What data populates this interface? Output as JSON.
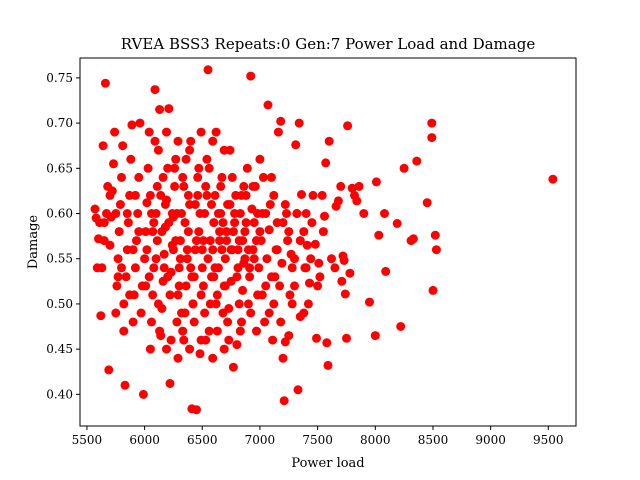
{
  "chart_data": {
    "type": "scatter",
    "title": "RVEA BSS3 Repeats:0 Gen:7 Power Load and Damage",
    "xlabel": "Power load",
    "ylabel": "Damage",
    "xlim": [
      5440,
      9740
    ],
    "ylim": [
      0.365,
      0.772
    ],
    "xticks": [
      "5500",
      "6000",
      "6500",
      "7000",
      "7500",
      "8000",
      "8500",
      "9000",
      "9500"
    ],
    "yticks": [
      "0.40",
      "0.45",
      "0.50",
      "0.55",
      "0.60",
      "0.65",
      "0.70",
      "0.75"
    ],
    "grid": false,
    "legend": "none",
    "marker_color": "#ff0000",
    "points": [
      [
        9540,
        0.638
      ],
      [
        8530,
        0.56
      ],
      [
        8520,
        0.576
      ],
      [
        8500,
        0.515
      ],
      [
        8490,
        0.7
      ],
      [
        8490,
        0.684
      ],
      [
        8450,
        0.612
      ],
      [
        8360,
        0.658
      ],
      [
        8330,
        0.572
      ],
      [
        8310,
        0.57
      ],
      [
        8250,
        0.65
      ],
      [
        8220,
        0.475
      ],
      [
        8190,
        0.589
      ],
      [
        8090,
        0.536
      ],
      [
        8080,
        0.6
      ],
      [
        8030,
        0.576
      ],
      [
        8010,
        0.635
      ],
      [
        8000,
        0.465
      ],
      [
        7950,
        0.502
      ],
      [
        7900,
        0.6
      ],
      [
        7860,
        0.63
      ],
      [
        7840,
        0.614
      ],
      [
        7820,
        0.62
      ],
      [
        7800,
        0.628
      ],
      [
        7780,
        0.534
      ],
      [
        7760,
        0.697
      ],
      [
        7750,
        0.462
      ],
      [
        7740,
        0.511
      ],
      [
        7730,
        0.548
      ],
      [
        7720,
        0.553
      ],
      [
        7710,
        0.525
      ],
      [
        7700,
        0.63
      ],
      [
        7680,
        0.614
      ],
      [
        7660,
        0.608
      ],
      [
        7650,
        0.54
      ],
      [
        7620,
        0.55
      ],
      [
        7600,
        0.68
      ],
      [
        7590,
        0.432
      ],
      [
        7580,
        0.457
      ],
      [
        7570,
        0.656
      ],
      [
        7560,
        0.597
      ],
      [
        7550,
        0.58
      ],
      [
        7540,
        0.62
      ],
      [
        7520,
        0.53
      ],
      [
        7510,
        0.545
      ],
      [
        7500,
        0.52
      ],
      [
        7490,
        0.462
      ],
      [
        7480,
        0.566
      ],
      [
        7460,
        0.62
      ],
      [
        7450,
        0.59
      ],
      [
        7440,
        0.55
      ],
      [
        7430,
        0.523
      ],
      [
        7420,
        0.5
      ],
      [
        7410,
        0.565
      ],
      [
        7400,
        0.6
      ],
      [
        7390,
        0.54
      ],
      [
        7380,
        0.58
      ],
      [
        7360,
        0.621
      ],
      [
        7350,
        0.486
      ],
      [
        7340,
        0.7
      ],
      [
        7330,
        0.405
      ],
      [
        7320,
        0.6
      ],
      [
        7310,
        0.676
      ],
      [
        7300,
        0.52
      ],
      [
        7280,
        0.54
      ],
      [
        7270,
        0.555
      ],
      [
        7260,
        0.51
      ],
      [
        7250,
        0.465
      ],
      [
        7240,
        0.57
      ],
      [
        7230,
        0.6
      ],
      [
        7220,
        0.458
      ],
      [
        7210,
        0.393
      ],
      [
        7200,
        0.44
      ],
      [
        7190,
        0.545
      ],
      [
        7180,
        0.702
      ],
      [
        7170,
        0.52
      ],
      [
        7160,
        0.69
      ],
      [
        7150,
        0.59
      ],
      [
        7140,
        0.56
      ],
      [
        7130,
        0.53
      ],
      [
        7120,
        0.5
      ],
      [
        7110,
        0.46
      ],
      [
        7100,
        0.64
      ],
      [
        7090,
        0.61
      ],
      [
        7080,
        0.582
      ],
      [
        7070,
        0.72
      ],
      [
        7060,
        0.55
      ],
      [
        7050,
        0.52
      ],
      [
        7040,
        0.48
      ],
      [
        7030,
        0.64
      ],
      [
        7020,
        0.6
      ],
      [
        7010,
        0.57
      ],
      [
        7000,
        0.66
      ],
      [
        6990,
        0.54
      ],
      [
        6980,
        0.51
      ],
      [
        6970,
        0.47
      ],
      [
        6960,
        0.63
      ],
      [
        6950,
        0.59
      ],
      [
        6940,
        0.56
      ],
      [
        6930,
        0.605
      ],
      [
        6920,
        0.752
      ],
      [
        6910,
        0.53
      ],
      [
        6900,
        0.5
      ],
      [
        6890,
        0.65
      ],
      [
        6880,
        0.62
      ],
      [
        6870,
        0.58
      ],
      [
        6860,
        0.545
      ],
      [
        6850,
        0.515
      ],
      [
        6840,
        0.48
      ],
      [
        6830,
        0.6
      ],
      [
        6820,
        0.57
      ],
      [
        6810,
        0.54
      ],
      [
        6800,
        0.455
      ],
      [
        6790,
        0.62
      ],
      [
        6780,
        0.59
      ],
      [
        6770,
        0.43
      ],
      [
        6760,
        0.56
      ],
      [
        6750,
        0.525
      ],
      [
        6740,
        0.67
      ],
      [
        6730,
        0.495
      ],
      [
        6720,
        0.61
      ],
      [
        6710,
        0.58
      ],
      [
        6700,
        0.55
      ],
      [
        6690,
        0.52
      ],
      [
        6680,
        0.49
      ],
      [
        6670,
        0.64
      ],
      [
        6660,
        0.6
      ],
      [
        6650,
        0.57
      ],
      [
        6640,
        0.54
      ],
      [
        6630,
        0.51
      ],
      [
        6620,
        0.69
      ],
      [
        6610,
        0.62
      ],
      [
        6600,
        0.59
      ],
      [
        6590,
        0.56
      ],
      [
        6580,
        0.53
      ],
      [
        6570,
        0.5
      ],
      [
        6560,
        0.47
      ],
      [
        6550,
        0.759
      ],
      [
        6540,
        0.66
      ],
      [
        6530,
        0.63
      ],
      [
        6520,
        0.6
      ],
      [
        6510,
        0.57
      ],
      [
        6500,
        0.54
      ],
      [
        6490,
        0.51
      ],
      [
        6480,
        0.445
      ],
      [
        6470,
        0.65
      ],
      [
        6460,
        0.62
      ],
      [
        6450,
        0.383
      ],
      [
        6440,
        0.56
      ],
      [
        6430,
        0.53
      ],
      [
        6420,
        0.5
      ],
      [
        6410,
        0.384
      ],
      [
        6400,
        0.68
      ],
      [
        6390,
        0.61
      ],
      [
        6380,
        0.58
      ],
      [
        6370,
        0.55
      ],
      [
        6360,
        0.52
      ],
      [
        6350,
        0.49
      ],
      [
        6340,
        0.46
      ],
      [
        6330,
        0.64
      ],
      [
        6320,
        0.6
      ],
      [
        6310,
        0.57
      ],
      [
        6300,
        0.54
      ],
      [
        6290,
        0.51
      ],
      [
        6280,
        0.48
      ],
      [
        6270,
        0.66
      ],
      [
        6260,
        0.63
      ],
      [
        6250,
        0.596
      ],
      [
        6240,
        0.565
      ],
      [
        6230,
        0.535
      ],
      [
        6220,
        0.412
      ],
      [
        6210,
        0.716
      ],
      [
        6200,
        0.65
      ],
      [
        6190,
        0.615
      ],
      [
        6180,
        0.585
      ],
      [
        6170,
        0.555
      ],
      [
        6160,
        0.525
      ],
      [
        6150,
        0.495
      ],
      [
        6140,
        0.465
      ],
      [
        6130,
        0.715
      ],
      [
        6120,
        0.67
      ],
      [
        6110,
        0.63
      ],
      [
        6100,
        0.6
      ],
      [
        6090,
        0.737
      ],
      [
        6080,
        0.54
      ],
      [
        6070,
        0.51
      ],
      [
        6060,
        0.48
      ],
      [
        6050,
        0.45
      ],
      [
        6040,
        0.69
      ],
      [
        6030,
        0.65
      ],
      [
        6020,
        0.612
      ],
      [
        6010,
        0.58
      ],
      [
        6000,
        0.55
      ],
      [
        5990,
        0.4
      ],
      [
        5980,
        0.52
      ],
      [
        5970,
        0.49
      ],
      [
        5960,
        0.7
      ],
      [
        5950,
        0.64
      ],
      [
        5940,
        0.6
      ],
      [
        5930,
        0.57
      ],
      [
        5920,
        0.54
      ],
      [
        5910,
        0.51
      ],
      [
        5900,
        0.48
      ],
      [
        5890,
        0.698
      ],
      [
        5880,
        0.66
      ],
      [
        5870,
        0.62
      ],
      [
        5860,
        0.59
      ],
      [
        5850,
        0.56
      ],
      [
        5840,
        0.53
      ],
      [
        5830,
        0.41
      ],
      [
        5820,
        0.47
      ],
      [
        5810,
        0.675
      ],
      [
        5800,
        0.64
      ],
      [
        5790,
        0.61
      ],
      [
        5780,
        0.58
      ],
      [
        5770,
        0.55
      ],
      [
        5760,
        0.52
      ],
      [
        5750,
        0.49
      ],
      [
        5740,
        0.69
      ],
      [
        5730,
        0.655
      ],
      [
        5720,
        0.625
      ],
      [
        5710,
        0.596
      ],
      [
        5700,
        0.565
      ],
      [
        5690,
        0.427
      ],
      [
        5680,
        0.63
      ],
      [
        5670,
        0.6
      ],
      [
        5660,
        0.744
      ],
      [
        5650,
        0.57
      ],
      [
        5640,
        0.675
      ],
      [
        5630,
        0.54
      ],
      [
        5620,
        0.487
      ],
      [
        5610,
        0.59
      ],
      [
        5600,
        0.572
      ],
      [
        5590,
        0.54
      ],
      [
        5580,
        0.595
      ],
      [
        5570,
        0.605
      ],
      [
        6050,
        0.62
      ],
      [
        6150,
        0.58
      ],
      [
        6250,
        0.56
      ],
      [
        6350,
        0.59
      ],
      [
        6450,
        0.57
      ],
      [
        6550,
        0.55
      ],
      [
        6650,
        0.58
      ],
      [
        6750,
        0.56
      ],
      [
        6850,
        0.57
      ],
      [
        6950,
        0.55
      ],
      [
        6100,
        0.55
      ],
      [
        6200,
        0.53
      ],
      [
        6300,
        0.52
      ],
      [
        6400,
        0.54
      ],
      [
        6500,
        0.56
      ],
      [
        6600,
        0.53
      ],
      [
        6700,
        0.52
      ],
      [
        6800,
        0.53
      ],
      [
        6900,
        0.56
      ],
      [
        7000,
        0.58
      ],
      [
        6080,
        0.59
      ],
      [
        6180,
        0.61
      ],
      [
        6280,
        0.6
      ],
      [
        6380,
        0.62
      ],
      [
        6480,
        0.6
      ],
      [
        6580,
        0.61
      ],
      [
        6680,
        0.59
      ],
      [
        6780,
        0.6
      ],
      [
        6880,
        0.59
      ],
      [
        6980,
        0.6
      ],
      [
        6120,
        0.5
      ],
      [
        6220,
        0.51
      ],
      [
        6320,
        0.49
      ],
      [
        6420,
        0.5
      ],
      [
        6520,
        0.49
      ],
      [
        6620,
        0.5
      ],
      [
        6720,
        0.48
      ],
      [
        6820,
        0.5
      ],
      [
        6920,
        0.49
      ],
      [
        7020,
        0.51
      ],
      [
        6160,
        0.64
      ],
      [
        6260,
        0.65
      ],
      [
        6360,
        0.66
      ],
      [
        6460,
        0.64
      ],
      [
        6560,
        0.65
      ],
      [
        6660,
        0.63
      ],
      [
        6760,
        0.64
      ],
      [
        6860,
        0.63
      ],
      [
        6020,
        0.56
      ],
      [
        6070,
        0.58
      ],
      [
        6170,
        0.54
      ],
      [
        6270,
        0.57
      ],
      [
        6370,
        0.56
      ],
      [
        6470,
        0.58
      ],
      [
        6570,
        0.57
      ],
      [
        6670,
        0.56
      ],
      [
        6770,
        0.58
      ],
      [
        6870,
        0.55
      ],
      [
        6970,
        0.57
      ],
      [
        6130,
        0.47
      ],
      [
        6230,
        0.46
      ],
      [
        6330,
        0.47
      ],
      [
        6430,
        0.48
      ],
      [
        6530,
        0.46
      ],
      [
        6630,
        0.47
      ],
      [
        6730,
        0.46
      ],
      [
        6830,
        0.47
      ],
      [
        5950,
        0.58
      ],
      [
        5900,
        0.56
      ],
      [
        5850,
        0.6
      ],
      [
        5800,
        0.54
      ],
      [
        5750,
        0.6
      ],
      [
        5700,
        0.62
      ],
      [
        5650,
        0.59
      ],
      [
        5920,
        0.62
      ],
      [
        5870,
        0.51
      ],
      [
        5820,
        0.5
      ],
      [
        5770,
        0.53
      ],
      [
        7100,
        0.53
      ],
      [
        7150,
        0.56
      ],
      [
        7200,
        0.59
      ],
      [
        7250,
        0.58
      ],
      [
        7300,
        0.55
      ],
      [
        7350,
        0.57
      ],
      [
        7400,
        0.54
      ],
      [
        7050,
        0.6
      ],
      [
        7120,
        0.62
      ],
      [
        7220,
        0.61
      ],
      [
        7320,
        0.6
      ],
      [
        7080,
        0.49
      ],
      [
        7180,
        0.48
      ],
      [
        7280,
        0.5
      ],
      [
        7380,
        0.49
      ],
      [
        6010,
        0.52
      ],
      [
        6060,
        0.6
      ],
      [
        6110,
        0.57
      ],
      [
        6210,
        0.59
      ],
      [
        6310,
        0.55
      ],
      [
        6410,
        0.53
      ],
      [
        6510,
        0.52
      ],
      [
        6610,
        0.54
      ],
      [
        6710,
        0.57
      ],
      [
        6810,
        0.56
      ],
      [
        6910,
        0.54
      ],
      [
        6040,
        0.53
      ],
      [
        6140,
        0.62
      ],
      [
        6240,
        0.6
      ],
      [
        6340,
        0.63
      ],
      [
        6440,
        0.61
      ],
      [
        6540,
        0.62
      ],
      [
        6640,
        0.6
      ],
      [
        6740,
        0.61
      ],
      [
        6840,
        0.62
      ],
      [
        6940,
        0.63
      ],
      [
        6190,
        0.45
      ],
      [
        6290,
        0.44
      ],
      [
        6390,
        0.45
      ],
      [
        6490,
        0.46
      ],
      [
        6590,
        0.44
      ],
      [
        6690,
        0.45
      ],
      [
        6090,
        0.68
      ],
      [
        6190,
        0.69
      ],
      [
        6290,
        0.68
      ],
      [
        6390,
        0.67
      ],
      [
        6490,
        0.69
      ],
      [
        6590,
        0.68
      ],
      [
        6690,
        0.67
      ]
    ]
  }
}
